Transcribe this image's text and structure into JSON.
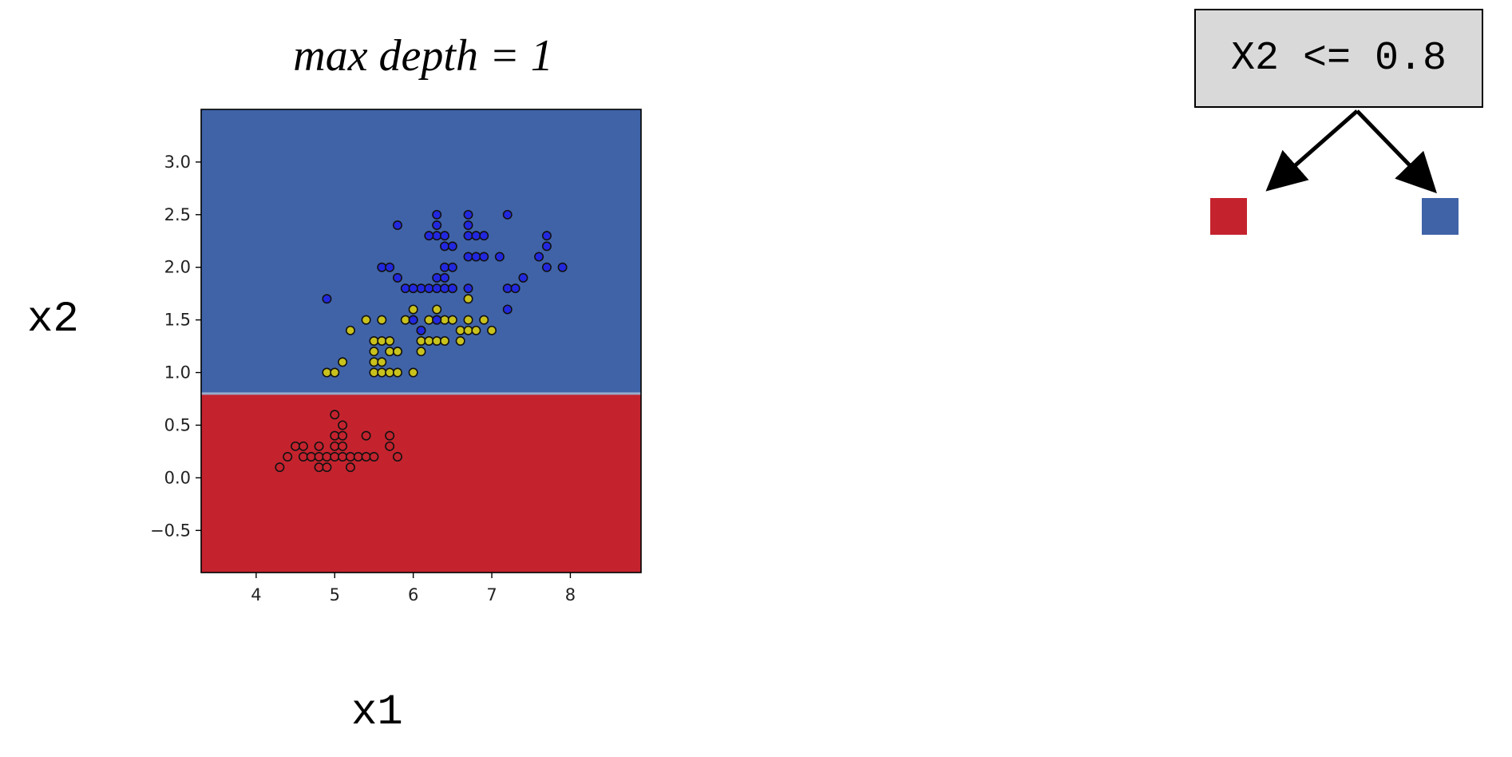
{
  "colors": {
    "region_low": "#c4232e",
    "region_high": "#4063a8",
    "class0": "#c4232e",
    "class1": "#c9c21d",
    "class2": "#2228e0",
    "boundary": "#9aaccc"
  },
  "chart_data": {
    "type": "scatter",
    "title": "max depth = 1",
    "xlabel": "x1",
    "ylabel": "x2",
    "xlim": [
      3.3,
      8.9
    ],
    "ylim": [
      -0.9,
      3.5
    ],
    "xticks": [
      4,
      5,
      6,
      7,
      8
    ],
    "yticks": [
      -0.5,
      0.0,
      0.5,
      1.0,
      1.5,
      2.0,
      2.5,
      3.0
    ],
    "ytick_labels": [
      "−0.5",
      "0.0",
      "0.5",
      "1.0",
      "1.5",
      "2.0",
      "2.5",
      "3.0"
    ],
    "decision_threshold": 0.8,
    "regions": [
      {
        "condition": "x2 <= 0.8",
        "color": "#c4232e"
      },
      {
        "condition": "x2 > 0.8",
        "color": "#4063a8"
      }
    ],
    "series": [
      {
        "color": "#c4232e",
        "points": [
          [
            4.3,
            0.1
          ],
          [
            4.4,
            0.2
          ],
          [
            4.5,
            0.3
          ],
          [
            4.6,
            0.2
          ],
          [
            4.6,
            0.3
          ],
          [
            4.7,
            0.2
          ],
          [
            4.8,
            0.1
          ],
          [
            4.8,
            0.2
          ],
          [
            4.8,
            0.3
          ],
          [
            4.9,
            0.1
          ],
          [
            4.9,
            0.2
          ],
          [
            5.0,
            0.2
          ],
          [
            5.0,
            0.3
          ],
          [
            5.0,
            0.4
          ],
          [
            5.0,
            0.6
          ],
          [
            5.1,
            0.2
          ],
          [
            5.1,
            0.3
          ],
          [
            5.1,
            0.4
          ],
          [
            5.1,
            0.5
          ],
          [
            5.2,
            0.1
          ],
          [
            5.2,
            0.2
          ],
          [
            5.3,
            0.2
          ],
          [
            5.4,
            0.2
          ],
          [
            5.4,
            0.4
          ],
          [
            5.5,
            0.2
          ],
          [
            5.7,
            0.3
          ],
          [
            5.7,
            0.4
          ],
          [
            5.8,
            0.2
          ]
        ]
      },
      {
        "color": "#c9c21d",
        "points": [
          [
            4.9,
            1.0
          ],
          [
            5.0,
            1.0
          ],
          [
            5.1,
            1.1
          ],
          [
            5.2,
            1.4
          ],
          [
            5.4,
            1.5
          ],
          [
            5.5,
            1.0
          ],
          [
            5.5,
            1.1
          ],
          [
            5.5,
            1.2
          ],
          [
            5.5,
            1.3
          ],
          [
            5.6,
            1.3
          ],
          [
            5.6,
            1.5
          ],
          [
            5.6,
            1.0
          ],
          [
            5.7,
            1.0
          ],
          [
            5.7,
            1.2
          ],
          [
            5.7,
            1.3
          ],
          [
            5.8,
            1.0
          ],
          [
            5.8,
            1.2
          ],
          [
            5.9,
            1.5
          ],
          [
            6.0,
            1.0
          ],
          [
            6.0,
            1.6
          ],
          [
            6.1,
            1.2
          ],
          [
            6.1,
            1.3
          ],
          [
            6.1,
            1.4
          ],
          [
            6.2,
            1.3
          ],
          [
            6.2,
            1.5
          ],
          [
            6.3,
            1.3
          ],
          [
            6.3,
            1.6
          ],
          [
            6.4,
            1.3
          ],
          [
            6.4,
            1.5
          ],
          [
            6.5,
            1.5
          ],
          [
            6.6,
            1.3
          ],
          [
            6.6,
            1.4
          ],
          [
            6.7,
            1.4
          ],
          [
            6.7,
            1.5
          ],
          [
            6.7,
            1.7
          ],
          [
            6.8,
            1.4
          ],
          [
            6.9,
            1.5
          ],
          [
            7.0,
            1.4
          ],
          [
            5.8,
            1.2
          ],
          [
            6.0,
            1.5
          ],
          [
            6.3,
            1.5
          ],
          [
            5.6,
            1.1
          ]
        ]
      },
      {
        "color": "#2228e0",
        "points": [
          [
            4.9,
            1.7
          ],
          [
            5.6,
            2.0
          ],
          [
            5.7,
            2.0
          ],
          [
            5.8,
            1.9
          ],
          [
            5.8,
            2.4
          ],
          [
            5.9,
            1.8
          ],
          [
            6.0,
            1.5
          ],
          [
            6.0,
            1.8
          ],
          [
            6.1,
            1.8
          ],
          [
            6.1,
            1.4
          ],
          [
            6.2,
            1.8
          ],
          [
            6.3,
            1.5
          ],
          [
            6.3,
            1.8
          ],
          [
            6.3,
            1.9
          ],
          [
            6.3,
            2.3
          ],
          [
            6.3,
            2.4
          ],
          [
            6.3,
            2.5
          ],
          [
            6.4,
            1.8
          ],
          [
            6.4,
            1.9
          ],
          [
            6.4,
            2.0
          ],
          [
            6.4,
            2.2
          ],
          [
            6.4,
            2.3
          ],
          [
            6.5,
            1.8
          ],
          [
            6.5,
            2.0
          ],
          [
            6.5,
            2.2
          ],
          [
            6.7,
            1.8
          ],
          [
            6.7,
            2.1
          ],
          [
            6.7,
            2.3
          ],
          [
            6.7,
            2.4
          ],
          [
            6.7,
            2.5
          ],
          [
            6.8,
            2.1
          ],
          [
            6.8,
            2.3
          ],
          [
            6.9,
            2.1
          ],
          [
            6.9,
            2.3
          ],
          [
            7.1,
            2.1
          ],
          [
            7.2,
            1.6
          ],
          [
            7.2,
            1.8
          ],
          [
            7.2,
            2.5
          ],
          [
            7.3,
            1.8
          ],
          [
            7.4,
            1.9
          ],
          [
            7.6,
            2.1
          ],
          [
            7.7,
            2.0
          ],
          [
            7.7,
            2.2
          ],
          [
            7.7,
            2.3
          ],
          [
            7.9,
            2.0
          ],
          [
            6.2,
            2.3
          ],
          [
            6.0,
            1.8
          ],
          [
            6.5,
            1.8
          ]
        ]
      }
    ]
  },
  "tree": {
    "root_label": "X2 <= 0.8",
    "left_leaf_color": "#c4232e",
    "right_leaf_color": "#4063a8"
  }
}
